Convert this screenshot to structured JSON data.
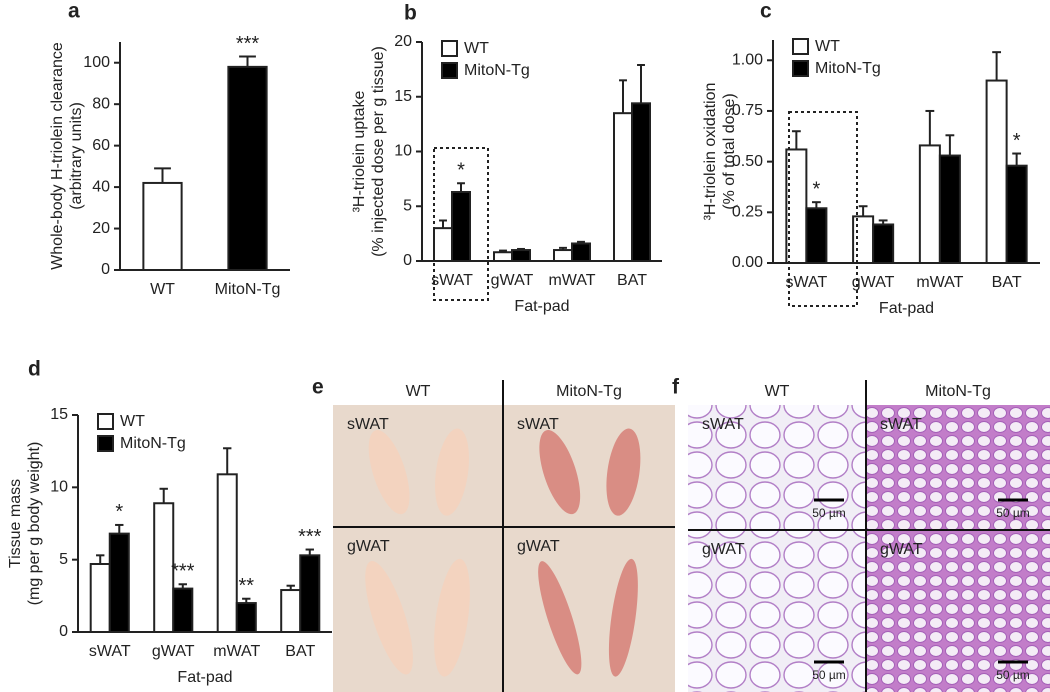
{
  "chart_data": [
    {
      "type": "bar",
      "panel": "a",
      "ylabel": [
        "Whole-body H-triolein clearance",
        "(arbitrary units)"
      ],
      "categories": [
        "WT",
        "MitoN-Tg"
      ],
      "values": [
        42,
        98
      ],
      "errors": [
        7,
        5
      ],
      "colors": [
        "#ffffff",
        "#000000"
      ],
      "stars": [
        null,
        "***"
      ],
      "ylim": [
        0,
        110
      ],
      "yticks": [
        0,
        20,
        40,
        60,
        80,
        100
      ]
    },
    {
      "type": "bar",
      "panel": "b",
      "ylabel": [
        "³H-triolein uptake",
        "(% injected dose per g tissue)"
      ],
      "xlabel": "Fat-pad",
      "categories": [
        "sWAT",
        "gWAT",
        "mWAT",
        "BAT"
      ],
      "legend": "upper left",
      "series": [
        {
          "name": "WT",
          "color": "#ffffff",
          "values": [
            3.0,
            0.8,
            1.0,
            13.5
          ],
          "errors": [
            0.7,
            0.15,
            0.2,
            3.0
          ],
          "stars": [
            null,
            null,
            null,
            null
          ]
        },
        {
          "name": "MitoN-Tg",
          "color": "#000000",
          "values": [
            6.3,
            1.0,
            1.6,
            14.4
          ],
          "errors": [
            0.8,
            0.1,
            0.15,
            3.5
          ],
          "stars": [
            "*",
            null,
            null,
            null
          ]
        }
      ],
      "ylim": [
        0,
        20
      ],
      "yticks": [
        0,
        5,
        10,
        15,
        20
      ]
    },
    {
      "type": "bar",
      "panel": "c",
      "ylabel": [
        "³H-triolein oxidation",
        "(% of total dose)"
      ],
      "xlabel": "Fat-pad",
      "categories": [
        "sWAT",
        "gWAT",
        "mWAT",
        "BAT"
      ],
      "legend": "upper left",
      "series": [
        {
          "name": "WT",
          "color": "#ffffff",
          "values": [
            0.56,
            0.23,
            0.58,
            0.9
          ],
          "errors": [
            0.09,
            0.05,
            0.17,
            0.14
          ],
          "stars": [
            null,
            null,
            null,
            null
          ]
        },
        {
          "name": "MitoN-Tg",
          "color": "#000000",
          "values": [
            0.27,
            0.19,
            0.53,
            0.48
          ],
          "errors": [
            0.03,
            0.02,
            0.1,
            0.06
          ],
          "stars": [
            "*",
            null,
            null,
            "*"
          ]
        }
      ],
      "ylim": [
        0,
        1.1
      ],
      "yticks": [
        {
          "value": 0,
          "label": "0.00"
        },
        {
          "value": 0.25,
          "label": "0.25"
        },
        {
          "value": 0.5,
          "label": "0.50"
        },
        {
          "value": 0.75,
          "label": "0.75"
        },
        {
          "value": 1,
          "label": "1.00"
        }
      ]
    },
    {
      "type": "bar",
      "panel": "d",
      "ylabel": [
        "Tissue mass",
        "(mg per g body weight)"
      ],
      "xlabel": "Fat-pad",
      "categories": [
        "sWAT",
        "gWAT",
        "mWAT",
        "BAT"
      ],
      "legend": "upper left",
      "series": [
        {
          "name": "WT",
          "color": "#ffffff",
          "values": [
            4.7,
            8.9,
            10.9,
            2.9
          ],
          "errors": [
            0.6,
            1.0,
            1.8,
            0.3
          ],
          "stars": [
            null,
            null,
            null,
            null
          ]
        },
        {
          "name": "MitoN-Tg",
          "color": "#000000",
          "values": [
            6.8,
            3.0,
            2.0,
            5.3
          ],
          "errors": [
            0.6,
            0.3,
            0.3,
            0.4
          ],
          "stars": [
            "*",
            "***",
            "**",
            "***"
          ]
        }
      ],
      "ylim": [
        0,
        15
      ],
      "yticks": [
        0,
        5,
        10,
        15
      ]
    }
  ],
  "image_panels": [
    {
      "letter": "e",
      "columns": [
        "WT",
        "MitoN-Tg"
      ],
      "rows": [
        [
          "sWAT",
          "sWAT"
        ],
        [
          "gWAT",
          "gWAT"
        ]
      ]
    },
    {
      "letter": "f",
      "columns": [
        "WT",
        "MitoN-Tg"
      ],
      "rows": [
        [
          "sWAT",
          "sWAT"
        ],
        [
          "gWAT",
          "gWAT"
        ]
      ],
      "scale_bars": [
        [
          "50 µm",
          "50 µm"
        ],
        [
          "50 µm",
          "50 µm"
        ]
      ]
    }
  ]
}
